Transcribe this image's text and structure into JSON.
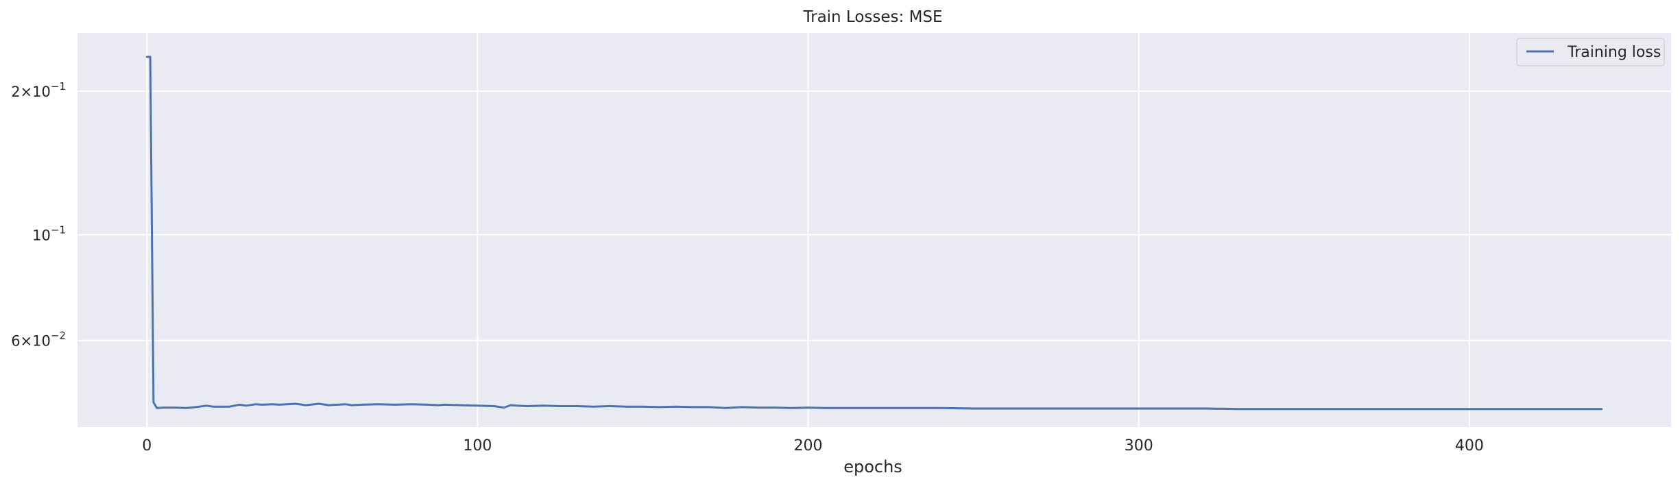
{
  "chart_data": {
    "type": "line",
    "title": "Train Losses:  MSE",
    "xlabel": "epochs",
    "ylabel": "",
    "y_scale": "log",
    "xlim": [
      -21,
      461
    ],
    "ylim": [
      0.0395,
      0.265
    ],
    "grid": true,
    "legend_position": "top-right",
    "x_ticks": [
      0,
      100,
      200,
      300,
      400
    ],
    "x_tick_labels": [
      "0",
      "100",
      "200",
      "300",
      "400"
    ],
    "y_ticks": [
      {
        "value": 0.2,
        "mantissa": "2",
        "exponent": "−1"
      },
      {
        "value": 0.1,
        "mantissa": "",
        "exponent": "−1"
      },
      {
        "value": 0.06,
        "mantissa": "6",
        "exponent": "−2"
      }
    ],
    "series": [
      {
        "name": "Training loss",
        "color": "#4c72b0",
        "x": [
          0,
          1,
          2,
          3,
          5,
          8,
          12,
          16,
          18,
          20,
          25,
          28,
          30,
          33,
          35,
          38,
          40,
          45,
          48,
          52,
          55,
          60,
          62,
          65,
          70,
          75,
          80,
          85,
          88,
          90,
          95,
          100,
          105,
          108,
          110,
          112,
          115,
          120,
          125,
          130,
          135,
          140,
          145,
          150,
          155,
          160,
          165,
          170,
          175,
          180,
          185,
          190,
          195,
          200,
          205,
          210,
          215,
          220,
          230,
          240,
          250,
          260,
          270,
          280,
          290,
          300,
          310,
          320,
          330,
          340,
          350,
          360,
          370,
          380,
          390,
          400,
          410,
          420,
          430,
          440
        ],
        "y": [
          0.236,
          0.236,
          0.0445,
          0.0433,
          0.0434,
          0.0434,
          0.0433,
          0.0436,
          0.0438,
          0.0436,
          0.0436,
          0.044,
          0.0438,
          0.0441,
          0.044,
          0.0441,
          0.044,
          0.0442,
          0.0439,
          0.0442,
          0.0439,
          0.0441,
          0.0439,
          0.044,
          0.0441,
          0.044,
          0.0441,
          0.044,
          0.0439,
          0.044,
          0.0439,
          0.0438,
          0.0437,
          0.0434,
          0.0439,
          0.0438,
          0.0437,
          0.0438,
          0.0437,
          0.0437,
          0.0436,
          0.0437,
          0.0436,
          0.0436,
          0.0435,
          0.0436,
          0.0435,
          0.0435,
          0.0433,
          0.0435,
          0.0434,
          0.0434,
          0.0433,
          0.0434,
          0.0433,
          0.0433,
          0.0433,
          0.0433,
          0.0433,
          0.0433,
          0.0432,
          0.0432,
          0.0432,
          0.0432,
          0.0432,
          0.0432,
          0.0432,
          0.0432,
          0.0431,
          0.0431,
          0.0431,
          0.0431,
          0.0431,
          0.0431,
          0.0431,
          0.0431,
          0.0431,
          0.0431,
          0.0431,
          0.0431
        ]
      }
    ]
  }
}
